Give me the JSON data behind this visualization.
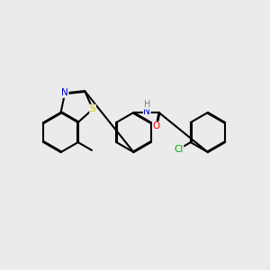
{
  "bg_color": "#ebebeb",
  "atom_colors": {
    "C": "#000000",
    "N": "#0000cc",
    "O": "#ff0000",
    "S": "#cccc00",
    "Cl": "#00aa00",
    "H": "#808080"
  },
  "figsize": [
    3.0,
    3.0
  ],
  "dpi": 100
}
